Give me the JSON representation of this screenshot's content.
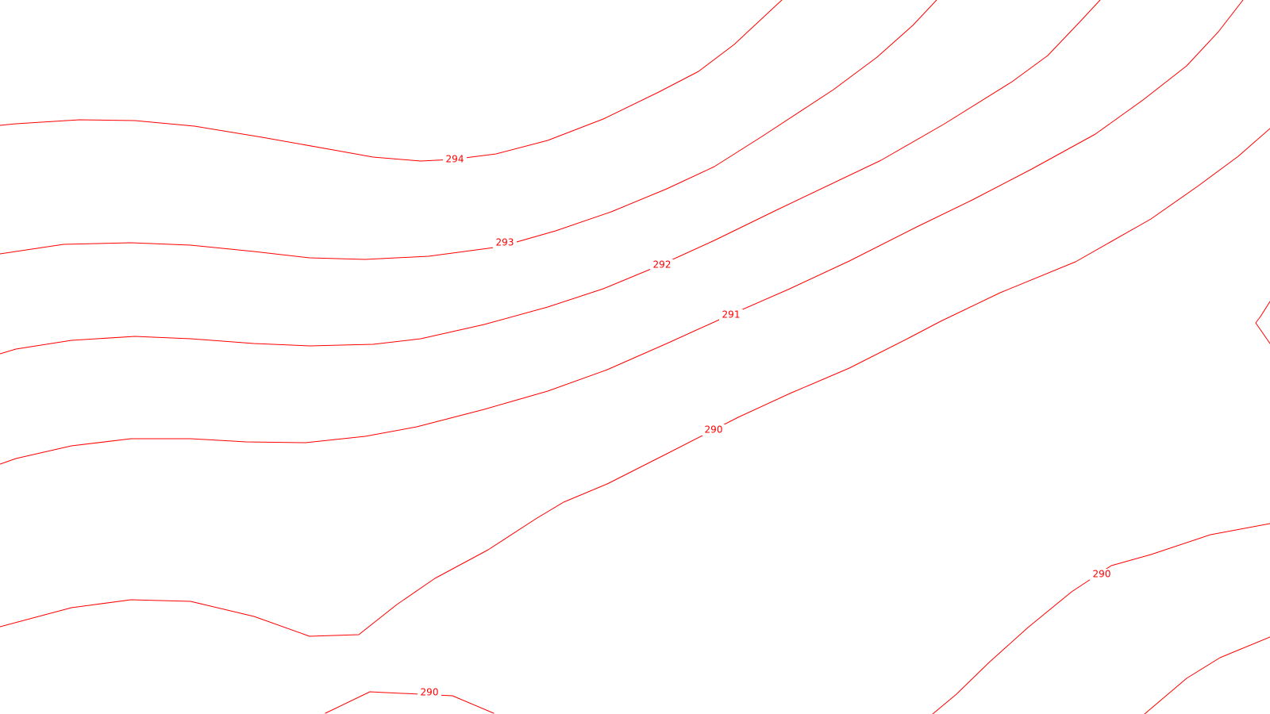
{
  "map": {
    "colors": {
      "background": "#ffffff",
      "contour": "#ff0000"
    },
    "contours": [
      {
        "id": "contour-294",
        "label": "294"
      },
      {
        "id": "contour-293",
        "label": "293"
      },
      {
        "id": "contour-292",
        "label": "292"
      },
      {
        "id": "contour-291",
        "label": "291"
      },
      {
        "id": "contour-290-main",
        "label": "290"
      },
      {
        "id": "contour-290-southeast",
        "label": "290"
      },
      {
        "id": "contour-290-south",
        "label": "290"
      },
      {
        "id": "contour-unlabeled-southwest",
        "label": ""
      },
      {
        "id": "contour-unlabeled-far-southeast",
        "label": ""
      },
      {
        "id": "contour-unlabeled-east-edge",
        "label": ""
      }
    ]
  }
}
